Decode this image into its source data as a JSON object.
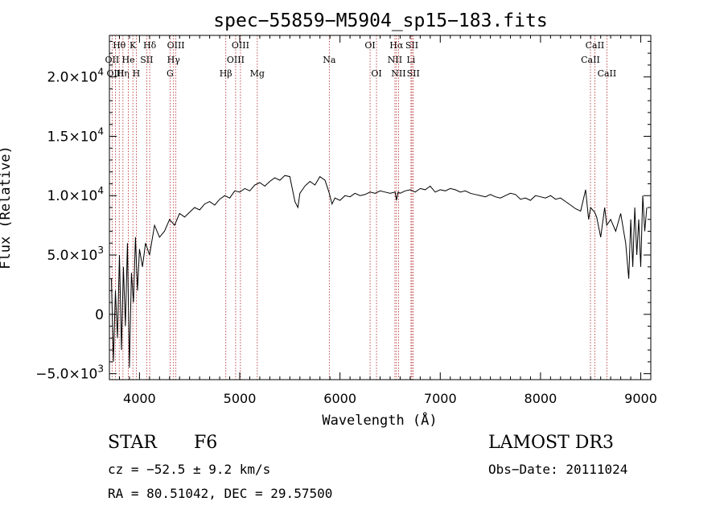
{
  "chart_data": {
    "type": "line",
    "title": "spec−55859−M5904_sp15−183.fits",
    "xlabel": "Wavelength (Å)",
    "ylabel": "Flux (Relative)",
    "xlim": [
      3700,
      9100
    ],
    "ylim": [
      -5500,
      23500
    ],
    "x_ticks": [
      4000,
      5000,
      6000,
      7000,
      8000,
      9000
    ],
    "x_tick_labels": [
      "4000",
      "5000",
      "6000",
      "7000",
      "8000",
      "9000"
    ],
    "y_ticks": [
      -5000,
      0,
      5000,
      10000,
      15000,
      20000
    ],
    "y_tick_labels": [
      {
        "mantissa": "−5.0×10",
        "exp": "3"
      },
      {
        "mantissa": "0",
        "exp": ""
      },
      {
        "mantissa": "5.0×10",
        "exp": "3"
      },
      {
        "mantissa": "1.0×10",
        "exp": "4"
      },
      {
        "mantissa": "1.5×10",
        "exp": "4"
      },
      {
        "mantissa": "2.0×10",
        "exp": "4"
      }
    ],
    "series": [
      {
        "name": "flux",
        "x": [
          3720,
          3740,
          3760,
          3780,
          3800,
          3820,
          3840,
          3860,
          3880,
          3900,
          3920,
          3940,
          3960,
          3980,
          4000,
          4030,
          4060,
          4100,
          4150,
          4200,
          4250,
          4300,
          4350,
          4400,
          4450,
          4500,
          4550,
          4600,
          4650,
          4700,
          4750,
          4800,
          4850,
          4900,
          4950,
          5000,
          5050,
          5100,
          5150,
          5200,
          5250,
          5300,
          5350,
          5400,
          5450,
          5500,
          5550,
          5580,
          5600,
          5650,
          5700,
          5750,
          5800,
          5850,
          5890,
          5920,
          5950,
          6000,
          6050,
          6100,
          6150,
          6200,
          6250,
          6300,
          6350,
          6400,
          6450,
          6500,
          6550,
          6563,
          6580,
          6600,
          6650,
          6700,
          6750,
          6800,
          6850,
          6900,
          6950,
          7000,
          7050,
          7100,
          7150,
          7200,
          7250,
          7300,
          7350,
          7400,
          7450,
          7500,
          7550,
          7600,
          7650,
          7700,
          7750,
          7800,
          7850,
          7900,
          7950,
          8000,
          8050,
          8100,
          8150,
          8200,
          8250,
          8300,
          8350,
          8400,
          8450,
          8480,
          8500,
          8540,
          8560,
          8600,
          8640,
          8660,
          8700,
          8750,
          8800,
          8850,
          8880,
          8900,
          8920,
          8940,
          8960,
          8980,
          9000,
          9020,
          9040,
          9060
        ],
        "y": [
          3000,
          -4000,
          2000,
          -2000,
          5000,
          -3000,
          4000,
          -1000,
          6000,
          -4500,
          3500,
          1000,
          6500,
          2000,
          5500,
          4000,
          6000,
          5000,
          7500,
          6500,
          7000,
          8000,
          7500,
          8500,
          8200,
          8600,
          9000,
          8800,
          9300,
          9500,
          9200,
          9700,
          10000,
          9800,
          10400,
          10300,
          10600,
          10400,
          10900,
          11100,
          10800,
          11200,
          11500,
          11300,
          11700,
          11600,
          9500,
          9000,
          10200,
          10800,
          11200,
          10900,
          11600,
          11300,
          10300,
          9300,
          9800,
          9600,
          10000,
          9900,
          10200,
          10000,
          10100,
          10300,
          10200,
          10400,
          10300,
          10200,
          10300,
          9600,
          10300,
          10200,
          10400,
          10500,
          10300,
          10600,
          10500,
          10800,
          10300,
          10500,
          10400,
          10600,
          10500,
          10300,
          10400,
          10200,
          10100,
          10000,
          9900,
          10100,
          9900,
          9800,
          10000,
          10200,
          10100,
          9700,
          9800,
          9600,
          10000,
          9900,
          9800,
          10000,
          9700,
          9800,
          9500,
          9200,
          8900,
          8700,
          10500,
          8000,
          9000,
          8600,
          8200,
          6500,
          9000,
          7500,
          8000,
          7000,
          8500,
          6000,
          3000,
          8000,
          4000,
          9000,
          5000,
          8000,
          4000,
          10000,
          7000,
          9000
        ]
      }
    ],
    "line_markers": [
      {
        "label": "Hθ",
        "x": 3798,
        "row": 0
      },
      {
        "label": "OII",
        "x": 3727,
        "row": 1
      },
      {
        "label": "OIII",
        "x": 3760,
        "row": 2
      },
      {
        "label": "Hη",
        "x": 3835,
        "row": 2
      },
      {
        "label": "He",
        "x": 3889,
        "row": 1
      },
      {
        "label": "K",
        "x": 3934,
        "row": 0
      },
      {
        "label": "H",
        "x": 3968,
        "row": 2
      },
      {
        "label": "SII",
        "x": 4072,
        "row": 1
      },
      {
        "label": "Hδ",
        "x": 4102,
        "row": 0
      },
      {
        "label": "OIII",
        "x": 4363,
        "row": 0
      },
      {
        "label": "Hγ",
        "x": 4340,
        "row": 1
      },
      {
        "label": "G",
        "x": 4305,
        "row": 2
      },
      {
        "label": "Hβ",
        "x": 4861,
        "row": 2
      },
      {
        "label": "OIII",
        "x": 5007,
        "row": 0
      },
      {
        "label": "OIII",
        "x": 4959,
        "row": 1
      },
      {
        "label": "Mg",
        "x": 5175,
        "row": 2
      },
      {
        "label": "Na",
        "x": 5893,
        "row": 1
      },
      {
        "label": "OI",
        "x": 6300,
        "row": 0
      },
      {
        "label": "OI",
        "x": 6364,
        "row": 2
      },
      {
        "label": "Hα",
        "x": 6563,
        "row": 0
      },
      {
        "label": "NII",
        "x": 6548,
        "row": 1
      },
      {
        "label": "NII",
        "x": 6584,
        "row": 2
      },
      {
        "label": "SII",
        "x": 6717,
        "row": 0
      },
      {
        "label": "Li",
        "x": 6708,
        "row": 1
      },
      {
        "label": "SII",
        "x": 6731,
        "row": 2
      },
      {
        "label": "CaII",
        "x": 8542,
        "row": 0
      },
      {
        "label": "CaII",
        "x": 8498,
        "row": 1
      },
      {
        "label": "CaII",
        "x": 8662,
        "row": 2
      }
    ],
    "colors": {
      "spectrum": "#000000",
      "line_markers": "#b22222",
      "axes": "#000000"
    }
  },
  "info": {
    "object_class": "STAR",
    "subclass": "F6",
    "survey": "LAMOST DR3",
    "cz": "cz = −52.5 ± 9.2 km/s",
    "obs_date": "Obs−Date: 20111024",
    "coords": "RA =  80.51042, DEC =  29.57500"
  }
}
